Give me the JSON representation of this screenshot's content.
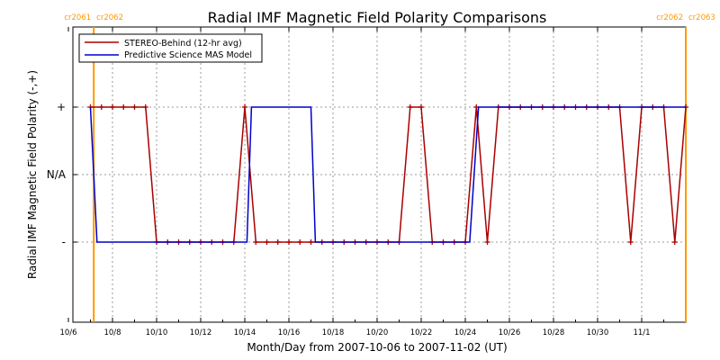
{
  "chart_data": {
    "type": "line",
    "title": "Radial IMF Magnetic Field Polarity Comparisons",
    "xlabel": "Month/Day from 2007-10-06 to 2007-11-02 (UT)",
    "ylabel": "Radial IMF Magnetic Field Polarity (-,+)",
    "x_range_days": [
      0,
      28
    ],
    "y_categories": [
      "-",
      "N/A",
      "+"
    ],
    "y_values": [
      -1,
      0,
      1
    ],
    "ylim": [
      -2,
      2
    ],
    "x_tick_labels": [
      "10/6",
      "10/8",
      "10/10",
      "10/12",
      "10/14",
      "10/16",
      "10/18",
      "10/20",
      "10/22",
      "10/24",
      "10/26",
      "10/28",
      "10/30",
      "11/1"
    ],
    "x_tick_days": [
      0,
      2,
      4,
      6,
      8,
      10,
      12,
      14,
      16,
      18,
      20,
      22,
      24,
      26
    ],
    "grid": true,
    "legend_position": "top-left",
    "carrington_markers": [
      {
        "day": 1.15,
        "label_left": "cr2061",
        "label_right": "cr2062"
      },
      {
        "day": 28.0,
        "label_left": "cr2062",
        "label_right": "cr2063"
      }
    ],
    "series": [
      {
        "name": "STEREO-Behind (12-hr avg)",
        "color": "#aa0000",
        "marker": "+",
        "points": [
          [
            1.0,
            1
          ],
          [
            1.5,
            1
          ],
          [
            2.0,
            1
          ],
          [
            2.5,
            1
          ],
          [
            3.0,
            1
          ],
          [
            3.5,
            1
          ],
          [
            4.0,
            -1
          ],
          [
            4.5,
            -1
          ],
          [
            5.0,
            -1
          ],
          [
            5.5,
            -1
          ],
          [
            6.0,
            -1
          ],
          [
            6.5,
            -1
          ],
          [
            7.0,
            -1
          ],
          [
            7.5,
            -1
          ],
          [
            8.0,
            1
          ],
          [
            8.5,
            -1
          ],
          [
            9.0,
            -1
          ],
          [
            9.5,
            -1
          ],
          [
            10.0,
            -1
          ],
          [
            10.5,
            -1
          ],
          [
            11.0,
            -1
          ],
          [
            11.5,
            -1
          ],
          [
            12.0,
            -1
          ],
          [
            12.5,
            -1
          ],
          [
            13.0,
            -1
          ],
          [
            13.5,
            -1
          ],
          [
            14.0,
            -1
          ],
          [
            14.5,
            -1
          ],
          [
            15.0,
            -1
          ],
          [
            15.5,
            1
          ],
          [
            16.0,
            1
          ],
          [
            16.5,
            -1
          ],
          [
            17.0,
            -1
          ],
          [
            17.5,
            -1
          ],
          [
            18.0,
            -1
          ],
          [
            18.5,
            1
          ],
          [
            19.0,
            -1
          ],
          [
            19.5,
            1
          ],
          [
            20.0,
            1
          ],
          [
            20.5,
            1
          ],
          [
            21.0,
            1
          ],
          [
            21.5,
            1
          ],
          [
            22.0,
            1
          ],
          [
            22.5,
            1
          ],
          [
            23.0,
            1
          ],
          [
            23.5,
            1
          ],
          [
            24.0,
            1
          ],
          [
            24.5,
            1
          ],
          [
            25.0,
            1
          ],
          [
            25.5,
            -1
          ],
          [
            26.0,
            1
          ],
          [
            26.5,
            1
          ],
          [
            27.0,
            1
          ],
          [
            27.5,
            -1
          ],
          [
            28.0,
            1
          ]
        ]
      },
      {
        "name": "Predictive Science MAS Model",
        "color": "#0000cc",
        "marker": "none",
        "points": [
          [
            1.0,
            1
          ],
          [
            1.3,
            -1
          ],
          [
            8.1,
            -1
          ],
          [
            8.3,
            1
          ],
          [
            11.0,
            1
          ],
          [
            11.2,
            -1
          ],
          [
            18.2,
            -1
          ],
          [
            18.6,
            1
          ],
          [
            28.0,
            1
          ]
        ]
      }
    ]
  }
}
